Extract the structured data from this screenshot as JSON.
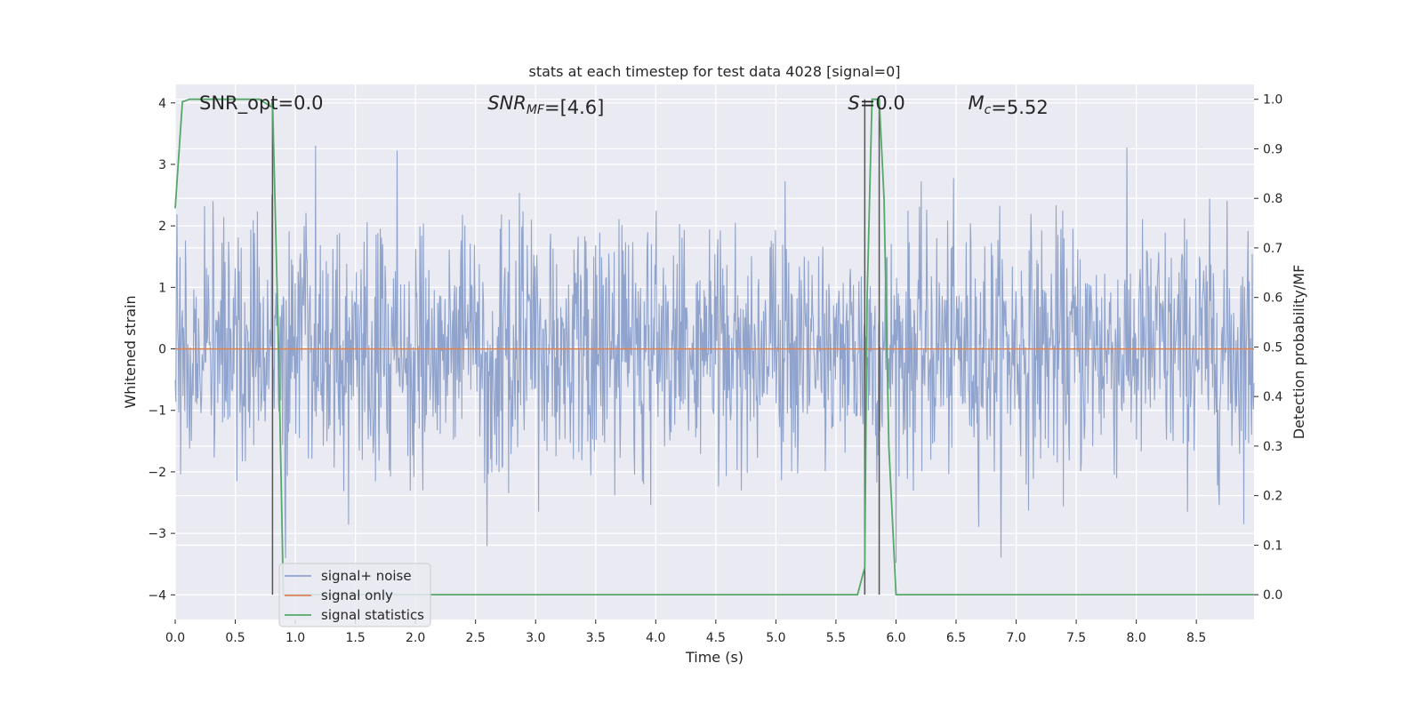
{
  "chart_data": {
    "type": "line",
    "title": "stats at each timestep for test data 4028 [signal=0]",
    "xlabel": "Time (s)",
    "ylabel_left": "Whitened strain",
    "ylabel_right": "Detection probability/MF",
    "xlim": [
      0.0,
      8.98
    ],
    "ylim_left": [
      -4.4,
      4.3
    ],
    "ylim_right": [
      -0.05,
      1.03
    ],
    "grid": true,
    "legend_placement": "lower-left",
    "x_ticks": [
      0.0,
      0.5,
      1.0,
      1.5,
      2.0,
      2.5,
      3.0,
      3.5,
      4.0,
      4.5,
      5.0,
      5.5,
      6.0,
      6.5,
      7.0,
      7.5,
      8.0,
      8.5
    ],
    "x_tick_labels": [
      "0.0",
      "0.5",
      "1.0",
      "1.5",
      "2.0",
      "2.5",
      "3.0",
      "3.5",
      "4.0",
      "4.5",
      "5.0",
      "5.5",
      "6.0",
      "6.5",
      "7.0",
      "7.5",
      "8.0",
      "8.5"
    ],
    "y_left_ticks": [
      4,
      3,
      2,
      1,
      0,
      -1,
      -2,
      -3,
      -4
    ],
    "y_left_tick_labels": [
      "4",
      "3",
      "2",
      "1",
      "0",
      "−1",
      "−2",
      "−3",
      "−4"
    ],
    "y_right_ticks": [
      1.0,
      0.9,
      0.8,
      0.7,
      0.6,
      0.5,
      0.4,
      0.3,
      0.2,
      0.1,
      0.0
    ],
    "y_right_tick_labels": [
      "1.0",
      "0.9",
      "0.8",
      "0.7",
      "0.6",
      "0.5",
      "0.4",
      "0.3",
      "0.2",
      "0.1",
      "0.0"
    ],
    "annotations": [
      {
        "id": "snr-opt",
        "text_parts": [
          {
            "t": "SNR_opt=0.0",
            "style": "normal"
          }
        ],
        "x": 0.2
      },
      {
        "id": "snr-mf",
        "text_parts": [
          {
            "t": "SNR",
            "style": "italic"
          },
          {
            "t": "MF",
            "style": "italic-sub"
          },
          {
            "t": "=[4.6]",
            "style": "normal"
          }
        ],
        "x": 2.6
      },
      {
        "id": "s-stat",
        "text_parts": [
          {
            "t": "S",
            "style": "italic"
          },
          {
            "t": "=0.0",
            "style": "normal"
          }
        ],
        "x": 5.6
      },
      {
        "id": "mc",
        "text_parts": [
          {
            "t": "M",
            "style": "italic"
          },
          {
            "t": "c",
            "style": "italic-sub"
          },
          {
            "t": "=5.52",
            "style": "normal"
          }
        ],
        "x": 6.6
      }
    ],
    "vlines": [
      0.81,
      5.74,
      5.86
    ],
    "series": [
      {
        "name": "signal+ noise",
        "color": "#8fa3cc",
        "axis": "left",
        "noise_sigma": 1.0,
        "approx_range": [
          -4.0,
          4.0
        ]
      },
      {
        "name": "signal only",
        "color": "#dd8452",
        "axis": "left",
        "x": [
          0.0,
          8.98
        ],
        "y": [
          0.0,
          0.0
        ]
      },
      {
        "name": "signal statistics",
        "color": "#55a868",
        "axis": "right",
        "x": [
          0.0,
          0.06,
          0.12,
          0.2,
          0.3,
          0.4,
          0.5,
          0.6,
          0.7,
          0.8,
          0.81,
          0.86,
          0.9,
          1.0,
          2.0,
          3.0,
          4.0,
          5.0,
          5.68,
          5.74,
          5.76,
          5.8,
          5.86,
          5.9,
          5.94,
          6.0,
          7.0,
          8.0,
          8.98
        ],
        "y": [
          0.78,
          0.995,
          1.0,
          1.0,
          1.0,
          1.0,
          1.0,
          1.0,
          1.0,
          0.985,
          1.0,
          0.5,
          0.0,
          0.0,
          0.0,
          0.0,
          0.0,
          0.0,
          0.0,
          0.055,
          0.6,
          1.0,
          1.0,
          0.8,
          0.3,
          0.0,
          0.0,
          0.0,
          0.0
        ]
      }
    ]
  }
}
